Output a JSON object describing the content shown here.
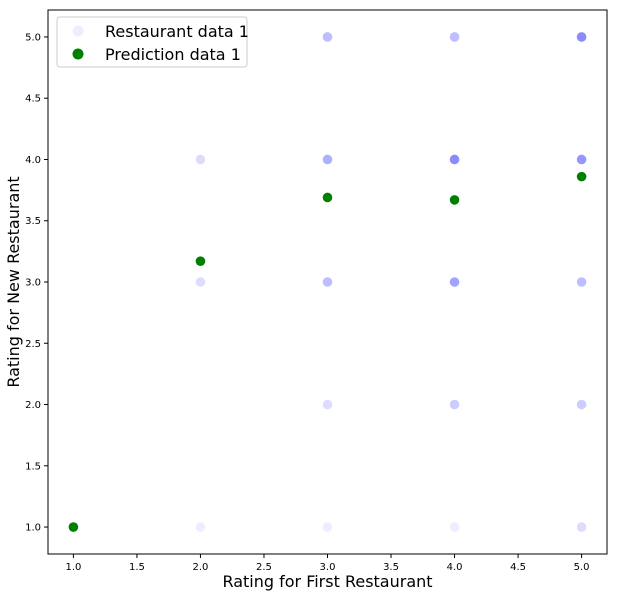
{
  "chart_data": {
    "type": "scatter",
    "xlabel": "Rating for First Restaurant",
    "ylabel": "Rating for New Restaurant",
    "xlim": [
      0.8,
      5.2
    ],
    "ylim": [
      0.78,
      5.22
    ],
    "x_ticks": [
      "1.0",
      "1.5",
      "2.0",
      "2.5",
      "3.0",
      "3.5",
      "4.0",
      "4.5",
      "5.0"
    ],
    "y_ticks": [
      "1.0",
      "1.5",
      "2.0",
      "2.5",
      "3.0",
      "3.5",
      "4.0",
      "4.5",
      "5.0"
    ],
    "legend_position": "top-left",
    "series": [
      {
        "name": "Restaurant data 1",
        "color": "#0000ff",
        "points": [
          {
            "x": 1,
            "y": 1,
            "count": 1
          },
          {
            "x": 2,
            "y": 1,
            "count": 1
          },
          {
            "x": 3,
            "y": 1,
            "count": 1
          },
          {
            "x": 4,
            "y": 1,
            "count": 1
          },
          {
            "x": 5,
            "y": 1,
            "count": 2
          },
          {
            "x": 2,
            "y": 3,
            "count": 2
          },
          {
            "x": 2,
            "y": 4,
            "count": 2
          },
          {
            "x": 3,
            "y": 2,
            "count": 2
          },
          {
            "x": 4,
            "y": 2,
            "count": 3
          },
          {
            "x": 5,
            "y": 2,
            "count": 3
          },
          {
            "x": 3,
            "y": 3,
            "count": 4
          },
          {
            "x": 4,
            "y": 3,
            "count": 6
          },
          {
            "x": 5,
            "y": 3,
            "count": 4
          },
          {
            "x": 3,
            "y": 4,
            "count": 5
          },
          {
            "x": 4,
            "y": 4,
            "count": 8
          },
          {
            "x": 5,
            "y": 4,
            "count": 7
          },
          {
            "x": 3,
            "y": 5,
            "count": 4
          },
          {
            "x": 4,
            "y": 5,
            "count": 4
          },
          {
            "x": 5,
            "y": 5,
            "count": 8
          }
        ]
      },
      {
        "name": "Prediction data 1",
        "color": "#008000",
        "points": [
          {
            "x": 1,
            "y": 1.0
          },
          {
            "x": 2,
            "y": 3.17
          },
          {
            "x": 3,
            "y": 3.69
          },
          {
            "x": 4,
            "y": 3.67
          },
          {
            "x": 5,
            "y": 3.86
          }
        ]
      }
    ]
  }
}
